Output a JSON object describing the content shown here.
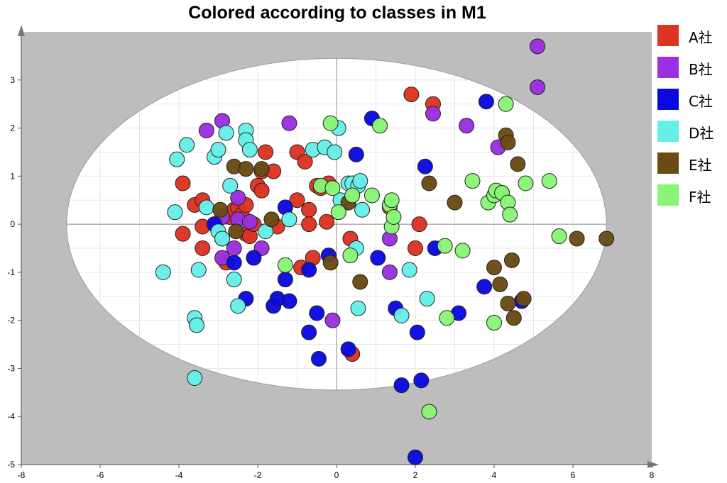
{
  "chart_data": {
    "type": "scatter",
    "title": "Colored according to classes in M1",
    "xlabel": "",
    "ylabel": "",
    "xlim": [
      -8,
      8
    ],
    "ylim": [
      -5,
      4
    ],
    "x_ticks": [
      -8,
      -6,
      -4,
      -2,
      0,
      2,
      4,
      6,
      8
    ],
    "y_ticks": [
      -5,
      -4,
      -3,
      -2,
      -1,
      0,
      1,
      2,
      3
    ],
    "grid": true,
    "confidence_ellipse": {
      "center": [
        0,
        0
      ],
      "semi_axis_x": 6.85,
      "semi_axis_y": 3.45
    },
    "legend_position": "right",
    "series": [
      {
        "name": "A社",
        "color": "#dd3322",
        "points": [
          [
            -3.9,
            0.85
          ],
          [
            -3.9,
            -0.2
          ],
          [
            -3.6,
            0.4
          ],
          [
            -3.4,
            0.5
          ],
          [
            -3.4,
            -0.05
          ],
          [
            -3.4,
            -0.5
          ],
          [
            -3.1,
            0.0
          ],
          [
            -2.9,
            -0.3
          ],
          [
            -2.8,
            -0.8
          ],
          [
            -2.7,
            0.15
          ],
          [
            -2.6,
            0.3
          ],
          [
            -2.5,
            0.35
          ],
          [
            -2.4,
            0.2
          ],
          [
            -2.3,
            0.4
          ],
          [
            -2.3,
            -0.2
          ],
          [
            -2.2,
            -0.25
          ],
          [
            -2.1,
            0.0
          ],
          [
            -2.0,
            0.8
          ],
          [
            -1.9,
            1.1
          ],
          [
            -1.9,
            0.7
          ],
          [
            -1.8,
            1.5
          ],
          [
            -1.6,
            1.1
          ],
          [
            -1.5,
            -0.05
          ],
          [
            -1.0,
            1.5
          ],
          [
            -1.0,
            0.5
          ],
          [
            -0.9,
            -0.9
          ],
          [
            -0.8,
            1.3
          ],
          [
            -0.7,
            0.3
          ],
          [
            -0.7,
            0.0
          ],
          [
            -0.6,
            -0.7
          ],
          [
            -0.5,
            0.8
          ],
          [
            -0.4,
            0.75
          ],
          [
            -0.2,
            0.85
          ],
          [
            -0.25,
            0.05
          ],
          [
            0.35,
            -0.3
          ],
          [
            0.4,
            -2.7
          ],
          [
            1.35,
            0.35
          ],
          [
            1.9,
            2.7
          ],
          [
            2.0,
            -0.5
          ],
          [
            2.1,
            0.0
          ],
          [
            2.45,
            2.5
          ]
        ]
      },
      {
        "name": "B社",
        "color": "#9b30e0",
        "points": [
          [
            -3.3,
            1.95
          ],
          [
            -2.9,
            2.15
          ],
          [
            -2.9,
            0.15
          ],
          [
            -2.9,
            -0.7
          ],
          [
            -2.6,
            -0.5
          ],
          [
            -2.5,
            0.55
          ],
          [
            -2.5,
            0.1
          ],
          [
            -2.2,
            0.05
          ],
          [
            -1.9,
            -0.5
          ],
          [
            -1.2,
            2.1
          ],
          [
            -0.1,
            -2.0
          ],
          [
            1.35,
            -0.3
          ],
          [
            1.35,
            -1.0
          ],
          [
            2.45,
            2.3
          ],
          [
            3.3,
            2.05
          ],
          [
            4.1,
            1.6
          ],
          [
            5.1,
            3.7
          ],
          [
            5.1,
            2.85
          ]
        ]
      },
      {
        "name": "C社",
        "color": "#0a0ae0",
        "points": [
          [
            -3.1,
            0.0
          ],
          [
            -2.6,
            -0.8
          ],
          [
            -2.3,
            -1.55
          ],
          [
            -2.1,
            -0.7
          ],
          [
            -1.6,
            -1.7
          ],
          [
            -1.5,
            -1.55
          ],
          [
            -1.3,
            0.35
          ],
          [
            -1.3,
            -1.15
          ],
          [
            -1.2,
            -1.6
          ],
          [
            -0.7,
            -0.95
          ],
          [
            -0.7,
            -2.25
          ],
          [
            -0.5,
            -1.85
          ],
          [
            -0.45,
            -2.8
          ],
          [
            -0.2,
            -0.65
          ],
          [
            0.3,
            -2.6
          ],
          [
            0.5,
            1.45
          ],
          [
            0.9,
            2.2
          ],
          [
            1.05,
            -0.7
          ],
          [
            1.5,
            -1.75
          ],
          [
            1.65,
            -3.35
          ],
          [
            2.0,
            -4.85
          ],
          [
            2.05,
            -2.25
          ],
          [
            2.15,
            -3.25
          ],
          [
            2.25,
            1.2
          ],
          [
            2.5,
            -0.5
          ],
          [
            3.1,
            -1.85
          ],
          [
            3.8,
            2.55
          ],
          [
            3.75,
            -1.3
          ],
          [
            4.7,
            -1.6
          ]
        ]
      },
      {
        "name": "D社",
        "color": "#66eee8",
        "points": [
          [
            -4.4,
            -1.0
          ],
          [
            -4.1,
            0.25
          ],
          [
            -4.05,
            1.35
          ],
          [
            -3.8,
            1.65
          ],
          [
            -3.6,
            -1.95
          ],
          [
            -3.55,
            -2.1
          ],
          [
            -3.6,
            -3.2
          ],
          [
            -3.5,
            -0.95
          ],
          [
            -3.3,
            0.35
          ],
          [
            -3.1,
            1.4
          ],
          [
            -3.0,
            1.55
          ],
          [
            -3.0,
            -0.15
          ],
          [
            -2.9,
            -0.3
          ],
          [
            -2.8,
            1.9
          ],
          [
            -2.7,
            0.8
          ],
          [
            -2.6,
            -1.15
          ],
          [
            -2.5,
            -1.7
          ],
          [
            -2.3,
            1.95
          ],
          [
            -2.3,
            1.75
          ],
          [
            -2.2,
            1.55
          ],
          [
            -1.8,
            -0.15
          ],
          [
            -1.2,
            0.1
          ],
          [
            -0.6,
            1.55
          ],
          [
            -0.3,
            1.6
          ],
          [
            -0.05,
            1.5
          ],
          [
            0.05,
            2.0
          ],
          [
            0.1,
            0.5
          ],
          [
            0.3,
            0.85
          ],
          [
            0.4,
            0.85
          ],
          [
            0.5,
            -0.5
          ],
          [
            0.55,
            -1.75
          ],
          [
            0.55,
            0.8
          ],
          [
            0.6,
            0.9
          ],
          [
            0.65,
            0.3
          ],
          [
            1.65,
            -1.9
          ],
          [
            1.85,
            -0.95
          ],
          [
            2.3,
            -1.55
          ]
        ]
      },
      {
        "name": "E社",
        "color": "#6b4a14",
        "points": [
          [
            -2.95,
            0.3
          ],
          [
            -2.6,
            1.2
          ],
          [
            -2.55,
            -0.15
          ],
          [
            -2.3,
            1.15
          ],
          [
            -1.9,
            1.15
          ],
          [
            -1.65,
            0.1
          ],
          [
            -0.15,
            -0.8
          ],
          [
            0.3,
            0.45
          ],
          [
            0.6,
            -1.2
          ],
          [
            2.35,
            0.85
          ],
          [
            3.0,
            0.45
          ],
          [
            4.0,
            -0.9
          ],
          [
            4.15,
            -1.25
          ],
          [
            4.2,
            0.65
          ],
          [
            4.3,
            1.85
          ],
          [
            4.35,
            1.7
          ],
          [
            4.35,
            -1.65
          ],
          [
            4.45,
            -0.75
          ],
          [
            4.5,
            -1.95
          ],
          [
            4.6,
            1.25
          ],
          [
            4.75,
            -1.55
          ],
          [
            6.1,
            -0.3
          ],
          [
            6.85,
            -0.3
          ]
        ]
      },
      {
        "name": "F社",
        "color": "#88f576",
        "points": [
          [
            -1.3,
            -0.85
          ],
          [
            -0.4,
            0.8
          ],
          [
            -0.15,
            2.1
          ],
          [
            -0.1,
            0.75
          ],
          [
            0.05,
            0.25
          ],
          [
            0.35,
            -0.65
          ],
          [
            0.4,
            0.6
          ],
          [
            0.9,
            0.6
          ],
          [
            1.1,
            2.05
          ],
          [
            1.35,
            0.4
          ],
          [
            1.4,
            -0.05
          ],
          [
            1.45,
            0.15
          ],
          [
            1.4,
            0.5
          ],
          [
            2.35,
            -3.9
          ],
          [
            2.75,
            -0.45
          ],
          [
            2.8,
            -1.95
          ],
          [
            3.2,
            -0.55
          ],
          [
            3.45,
            0.9
          ],
          [
            3.85,
            0.45
          ],
          [
            4.0,
            -2.05
          ],
          [
            4.0,
            0.6
          ],
          [
            4.05,
            0.7
          ],
          [
            4.2,
            0.65
          ],
          [
            4.3,
            2.5
          ],
          [
            4.35,
            0.45
          ],
          [
            4.4,
            0.2
          ],
          [
            4.8,
            0.85
          ],
          [
            5.4,
            0.9
          ],
          [
            5.65,
            -0.25
          ]
        ]
      }
    ]
  }
}
